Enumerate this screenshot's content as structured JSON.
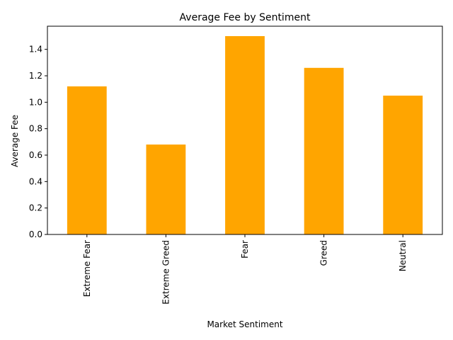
{
  "chart_data": {
    "type": "bar",
    "title": "Average Fee by Sentiment",
    "xlabel": "Market Sentiment",
    "ylabel": "Average Fee",
    "categories": [
      "Extreme Fear",
      "Extreme Greed",
      "Fear",
      "Greed",
      "Neutral"
    ],
    "values": [
      1.12,
      0.68,
      1.5,
      1.26,
      1.05
    ],
    "ylim": [
      0,
      1.575
    ],
    "yticks": [
      0.0,
      0.2,
      0.4,
      0.6,
      0.8,
      1.0,
      1.2,
      1.4
    ],
    "ytick_labels": [
      "0.0",
      "0.2",
      "0.4",
      "0.6",
      "0.8",
      "1.0",
      "1.2",
      "1.4"
    ],
    "bar_color": "#ffa500",
    "grid": false,
    "legend": "none"
  }
}
